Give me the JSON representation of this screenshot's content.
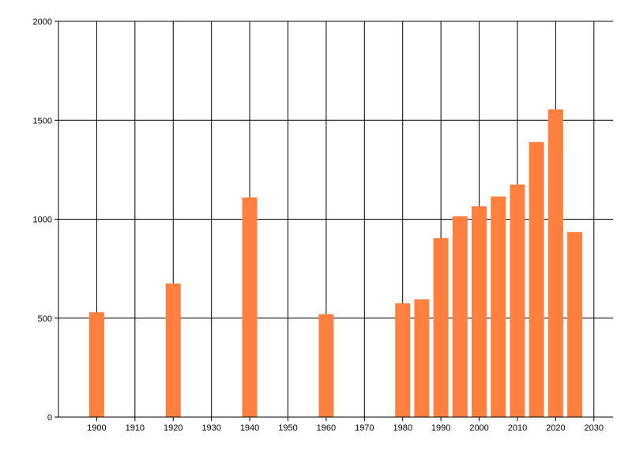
{
  "chart_data": {
    "type": "bar",
    "title": "",
    "xlabel": "",
    "ylabel": "",
    "x_ticks": [
      1900,
      1910,
      1920,
      1930,
      1940,
      1950,
      1960,
      1970,
      1980,
      1990,
      2000,
      2010,
      2020,
      2030
    ],
    "y_ticks": [
      0,
      500,
      1000,
      1500,
      2000
    ],
    "xlim": [
      1890,
      2035
    ],
    "ylim": [
      0,
      2000
    ],
    "grid": true,
    "legend": "none",
    "bar_color": "#ff7f3f",
    "series": [
      {
        "x": [
          1900,
          1920,
          1940,
          1960,
          1980,
          1985,
          1990,
          1995,
          2000,
          2005,
          2010,
          2015,
          2020,
          2025
        ],
        "values": [
          530,
          675,
          1110,
          520,
          575,
          595,
          905,
          1015,
          1065,
          1115,
          1175,
          1390,
          1555,
          935
        ]
      }
    ]
  }
}
